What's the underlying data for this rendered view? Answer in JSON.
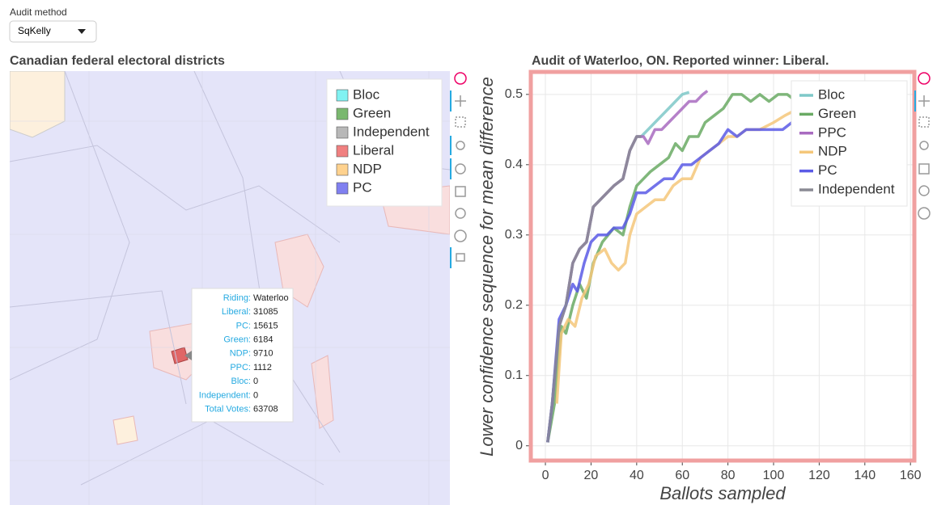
{
  "control": {
    "label": "Audit method",
    "selected": "SqKelly"
  },
  "map": {
    "title": "Canadian federal electoral districts",
    "legend": [
      {
        "name": "Bloc",
        "color": "#80f2f2"
      },
      {
        "name": "Green",
        "color": "#7ab86f"
      },
      {
        "name": "Independent",
        "color": "#b8b8b8"
      },
      {
        "name": "Liberal",
        "color": "#f08080"
      },
      {
        "name": "NDP",
        "color": "#ffd28e"
      },
      {
        "name": "PC",
        "color": "#8080f0"
      }
    ],
    "tooltip": [
      {
        "label": "Riding:",
        "value": "Waterloo"
      },
      {
        "label": "Liberal:",
        "value": 31085
      },
      {
        "label": "PC:",
        "value": 15615
      },
      {
        "label": "Green:",
        "value": 6184
      },
      {
        "label": "NDP:",
        "value": 9710
      },
      {
        "label": "PPC:",
        "value": 1112
      },
      {
        "label": "Bloc:",
        "value": 0
      },
      {
        "label": "Independent:",
        "value": 0
      },
      {
        "label": "Total Votes:",
        "value": 63708
      }
    ]
  },
  "chart_data": {
    "type": "line",
    "title": "Audit of Waterloo, ON. Reported winner: Liberal.",
    "xlabel": "Ballots sampled",
    "ylabel": "Lower confidence sequence for mean difference",
    "xlim": [
      -6.4,
      161.7
    ],
    "ylim": [
      -0.021,
      0.532
    ],
    "xticks": [
      0,
      20,
      40,
      60,
      80,
      100,
      120,
      140,
      160
    ],
    "yticks": [
      0,
      0.1,
      0.2,
      0.3,
      0.4,
      0.5
    ],
    "grid": true,
    "legend": "top-right",
    "series": [
      {
        "name": "Bloc",
        "color": "#7ec8c8",
        "x": [
          1,
          3,
          6,
          9,
          12,
          15,
          18,
          21,
          24,
          27,
          30,
          34,
          37,
          40,
          42,
          45,
          48,
          51,
          54,
          57,
          60,
          63
        ],
        "values": [
          0.005,
          0.06,
          0.17,
          0.2,
          0.26,
          0.28,
          0.29,
          0.34,
          0.35,
          0.36,
          0.37,
          0.38,
          0.42,
          0.44,
          0.44,
          0.45,
          0.46,
          0.47,
          0.48,
          0.49,
          0.5,
          0.503
        ]
      },
      {
        "name": "Green",
        "color": "#6aaa64",
        "x": [
          1,
          4,
          7,
          9,
          12,
          15,
          18,
          21,
          25,
          30,
          34,
          37,
          40,
          43,
          46,
          50,
          54,
          57,
          60,
          63,
          67,
          70,
          74,
          78,
          82,
          86,
          90,
          94,
          98,
          102,
          106,
          108
        ],
        "values": [
          0.005,
          0.06,
          0.17,
          0.16,
          0.2,
          0.23,
          0.21,
          0.26,
          0.29,
          0.31,
          0.3,
          0.34,
          0.37,
          0.38,
          0.39,
          0.4,
          0.41,
          0.43,
          0.42,
          0.44,
          0.44,
          0.46,
          0.47,
          0.48,
          0.5,
          0.5,
          0.49,
          0.5,
          0.49,
          0.5,
          0.5,
          0.495
        ]
      },
      {
        "name": "PPC",
        "color": "#a86bc0",
        "x": [
          1,
          3,
          6,
          9,
          12,
          15,
          18,
          21,
          24,
          27,
          30,
          34,
          37,
          40,
          43,
          45,
          48,
          51,
          54,
          57,
          60,
          63,
          66,
          69,
          71
        ],
        "values": [
          0.005,
          0.06,
          0.17,
          0.2,
          0.26,
          0.28,
          0.29,
          0.34,
          0.35,
          0.36,
          0.37,
          0.38,
          0.42,
          0.44,
          0.44,
          0.43,
          0.45,
          0.45,
          0.46,
          0.47,
          0.48,
          0.49,
          0.49,
          0.5,
          0.505
        ]
      },
      {
        "name": "NDP",
        "color": "#f5c77a",
        "x": [
          5,
          7,
          10,
          13,
          16,
          19,
          22,
          26,
          29,
          32,
          35,
          37,
          40,
          44,
          48,
          52,
          56,
          60,
          64,
          68,
          72,
          76,
          80,
          84,
          88,
          94,
          100,
          105,
          108
        ],
        "values": [
          0.06,
          0.16,
          0.18,
          0.17,
          0.21,
          0.23,
          0.27,
          0.28,
          0.26,
          0.25,
          0.26,
          0.3,
          0.33,
          0.34,
          0.35,
          0.35,
          0.37,
          0.38,
          0.38,
          0.41,
          0.42,
          0.43,
          0.44,
          0.44,
          0.45,
          0.45,
          0.46,
          0.47,
          0.475
        ]
      },
      {
        "name": "PC",
        "color": "#5b5be6",
        "x": [
          1,
          3,
          6,
          9,
          12,
          14,
          17,
          20,
          23,
          27,
          30,
          34,
          37,
          40,
          44,
          48,
          52,
          56,
          60,
          64,
          68,
          72,
          76,
          80,
          84,
          88,
          92,
          96,
          100,
          104,
          108
        ],
        "values": [
          0.005,
          0.06,
          0.18,
          0.2,
          0.23,
          0.22,
          0.26,
          0.29,
          0.3,
          0.3,
          0.31,
          0.31,
          0.33,
          0.36,
          0.36,
          0.37,
          0.38,
          0.38,
          0.4,
          0.4,
          0.41,
          0.42,
          0.43,
          0.45,
          0.44,
          0.45,
          0.45,
          0.45,
          0.45,
          0.45,
          0.46
        ]
      },
      {
        "name": "Independent",
        "color": "#8a8a94",
        "x": [
          1,
          3,
          6,
          9,
          12,
          15,
          18,
          21,
          24,
          27,
          30,
          34,
          37,
          40,
          42
        ],
        "values": [
          0.005,
          0.06,
          0.17,
          0.2,
          0.26,
          0.28,
          0.29,
          0.34,
          0.35,
          0.36,
          0.37,
          0.38,
          0.42,
          0.44,
          0.44
        ]
      }
    ]
  }
}
